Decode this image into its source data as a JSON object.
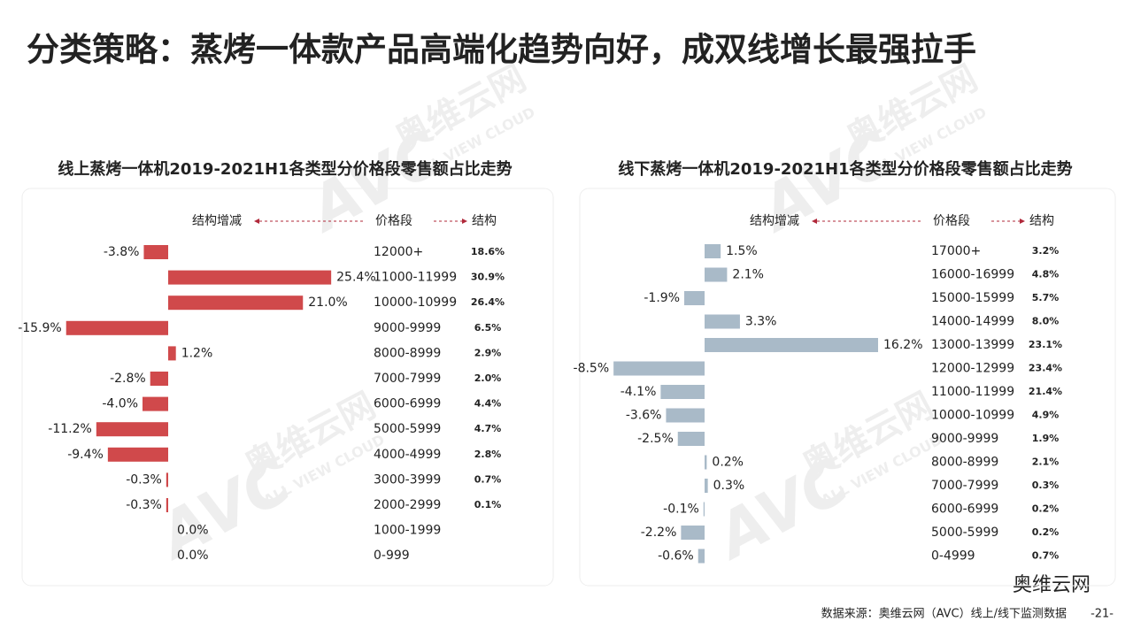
{
  "title": "分类策略：蒸烤一体款产品高端化趋势向好，成双线增长最强拉手",
  "source": "数据来源：奥维云网（AVC）线上/线下监测数据",
  "page_number": "-21-",
  "wechat": "奥维云网",
  "watermark": {
    "logo": "AVC",
    "name": "奥维云网",
    "en": "ALL VIEW CLOUD"
  },
  "chart_data": [
    {
      "type": "bar",
      "title": "线上蒸烤一体机2019-2021H1各类型分价格段零售额占比走势",
      "category_header": "价格段",
      "categories": [
        "12000+",
        "11000-11999",
        "10000-10999",
        "9000-9999",
        "8000-8999",
        "7000-7999",
        "6000-6999",
        "5000-5999",
        "4000-4999",
        "3000-3999",
        "2000-2999",
        "1000-1999",
        "0-999"
      ],
      "series": [
        {
          "name": "结构增减",
          "color": "#d0494b",
          "values": [
            -3.8,
            25.4,
            21.0,
            -15.9,
            1.2,
            -2.8,
            -4.0,
            -11.2,
            -9.4,
            -0.3,
            -0.3,
            0.0,
            0.0
          ],
          "value_labels": [
            "-3.8%",
            "25.4%",
            "21.0%",
            "-15.9%",
            "1.2%",
            "-2.8%",
            "-4.0%",
            "-11.2%",
            "-9.4%",
            "-0.3%",
            "-0.3%",
            "0.0%",
            "0.0%"
          ]
        }
      ],
      "share": {
        "name": "结构",
        "values": [
          18.6,
          30.9,
          26.4,
          6.5,
          2.9,
          2.0,
          4.4,
          4.7,
          2.8,
          0.7,
          0.1,
          null,
          null
        ],
        "value_labels": [
          "18.6%",
          "30.9%",
          "26.4%",
          "6.5%",
          "2.9%",
          "2.0%",
          "4.4%",
          "4.7%",
          "2.8%",
          "0.7%",
          "0.1%",
          null,
          null
        ]
      }
    },
    {
      "type": "bar",
      "title": "线下蒸烤一体机2019-2021H1各类型分价格段零售额占比走势",
      "category_header": "价格段",
      "categories": [
        "17000+",
        "16000-16999",
        "15000-15999",
        "14000-14999",
        "13000-13999",
        "12000-12999",
        "11000-11999",
        "10000-10999",
        "9000-9999",
        "8000-8999",
        "7000-7999",
        "6000-6999",
        "5000-5999",
        "0-4999"
      ],
      "series": [
        {
          "name": "结构增减",
          "color": "#a9bac8",
          "values": [
            1.5,
            2.1,
            -1.9,
            3.3,
            16.2,
            -8.5,
            -4.1,
            -3.6,
            -2.5,
            0.2,
            0.3,
            -0.1,
            -2.2,
            -0.6
          ],
          "value_labels": [
            "1.5%",
            "2.1%",
            "-1.9%",
            "3.3%",
            "16.2%",
            "-8.5%",
            "-4.1%",
            "-3.6%",
            "-2.5%",
            "0.2%",
            "0.3%",
            "-0.1%",
            "-2.2%",
            "-0.6%"
          ]
        }
      ],
      "share": {
        "name": "结构",
        "values": [
          3.2,
          4.8,
          5.7,
          8.0,
          23.1,
          23.4,
          21.4,
          4.9,
          1.9,
          2.1,
          0.3,
          0.2,
          0.2,
          0.7
        ],
        "value_labels": [
          "3.2%",
          "4.8%",
          "5.7%",
          "8.0%",
          "23.1%",
          "23.4%",
          "21.4%",
          "4.9%",
          "1.9%",
          "2.1%",
          "0.3%",
          "0.2%",
          "0.2%",
          "0.7%"
        ]
      }
    }
  ]
}
